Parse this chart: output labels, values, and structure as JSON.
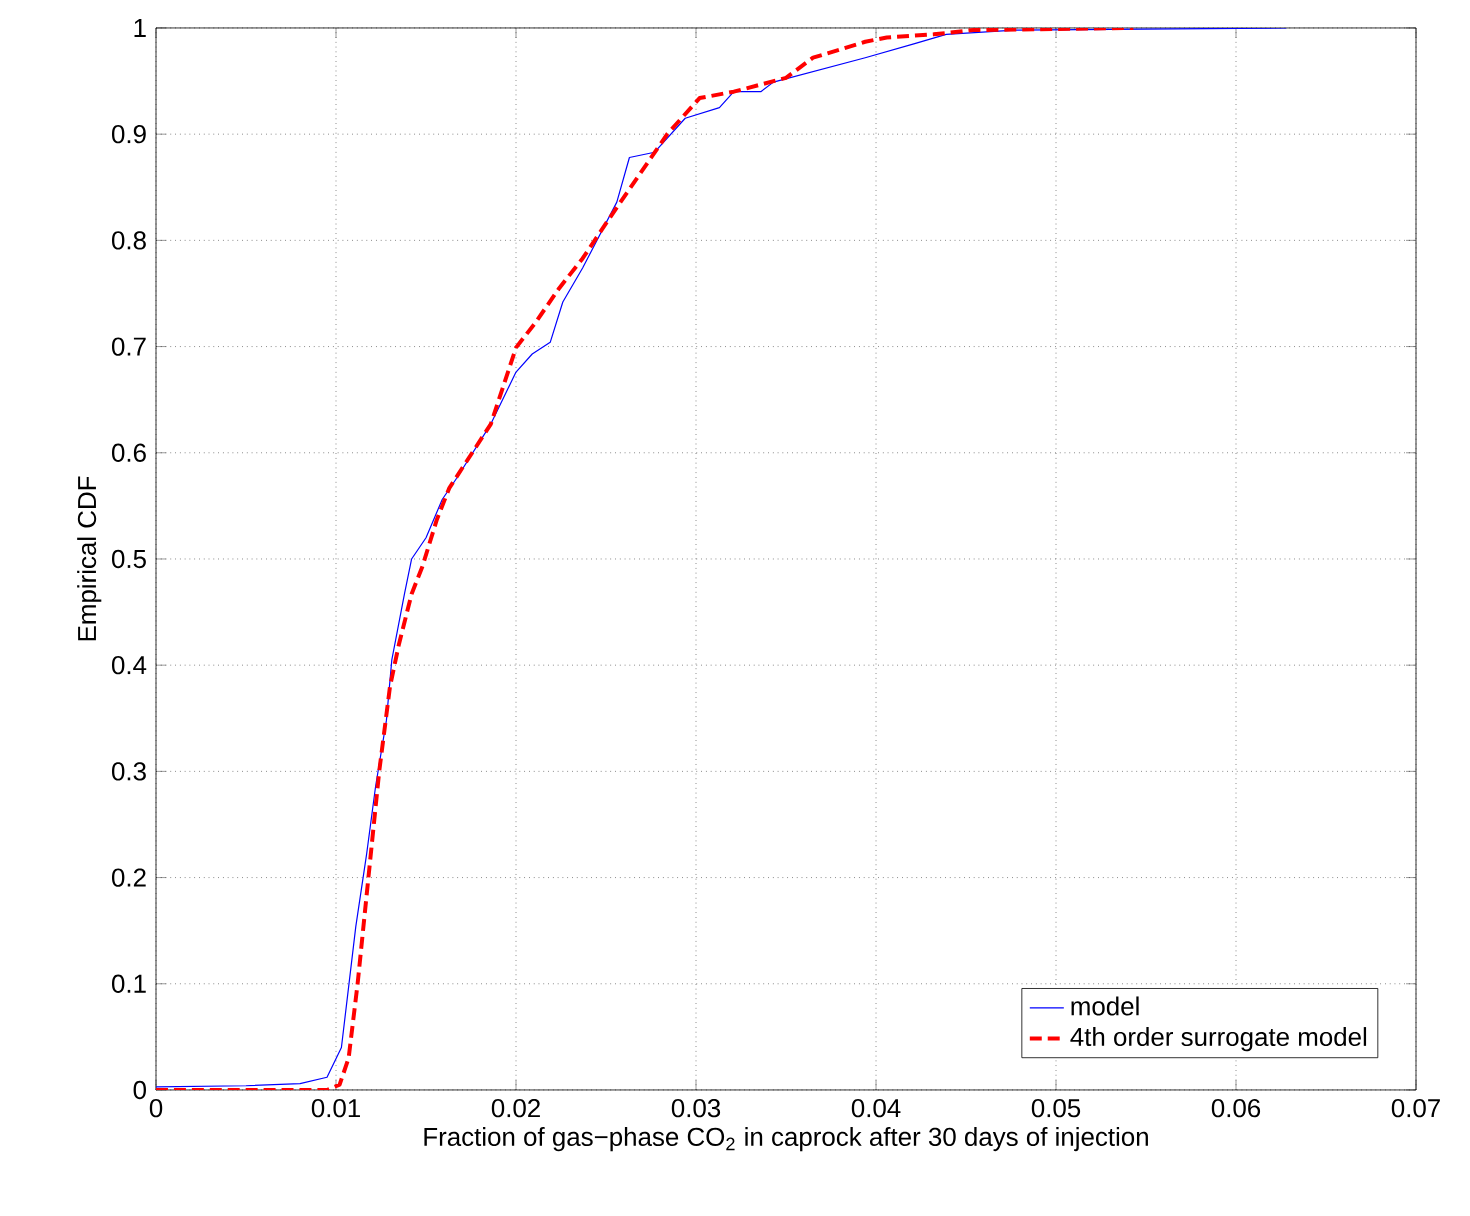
{
  "chart_data": {
    "type": "line",
    "xlabel": "Fraction of gas−phase CO$_{2}$ in caprock after 30 days of injection",
    "ylabel": "Empirical CDF",
    "xlim": [
      0,
      0.07
    ],
    "ylim": [
      0,
      1
    ],
    "xticks": [
      0,
      0.01,
      0.02,
      0.03,
      0.04,
      0.05,
      0.06,
      0.07
    ],
    "yticks": [
      0,
      0.1,
      0.2,
      0.3,
      0.4,
      0.5,
      0.6,
      0.7,
      0.8,
      0.9,
      1
    ],
    "grid": true,
    "legend": "bottom right",
    "series": [
      {
        "name": "model",
        "color": "#0000ff",
        "line_style": "solid",
        "x": [
          0,
          0.005,
          0.008,
          0.0095,
          0.0103,
          0.0111,
          0.0117,
          0.0122,
          0.0128,
          0.0131,
          0.0138,
          0.0142,
          0.015,
          0.0159,
          0.0167,
          0.0186,
          0.02,
          0.0209,
          0.0219,
          0.0226,
          0.0237,
          0.0256,
          0.0263,
          0.0277,
          0.0294,
          0.0313,
          0.0321,
          0.0336,
          0.0343,
          0.0394,
          0.0421,
          0.0439,
          0.0477,
          0.0628
        ],
        "values": [
          0.003,
          0.004,
          0.006,
          0.012,
          0.04,
          0.154,
          0.222,
          0.286,
          0.348,
          0.405,
          0.467,
          0.5,
          0.52,
          0.556,
          0.576,
          0.627,
          0.676,
          0.693,
          0.704,
          0.742,
          0.774,
          0.836,
          0.878,
          0.883,
          0.915,
          0.925,
          0.94,
          0.94,
          0.949,
          0.972,
          0.985,
          0.994,
          0.998,
          1
        ]
      },
      {
        "name": "4th order surrogate model",
        "color": "#ff0000",
        "line_style": "dashed",
        "x": [
          0,
          0.0095,
          0.0102,
          0.0107,
          0.0112,
          0.0118,
          0.0124,
          0.013,
          0.0135,
          0.0142,
          0.0148,
          0.0156,
          0.0163,
          0.0186,
          0.02,
          0.0211,
          0.0224,
          0.0237,
          0.0252,
          0.0269,
          0.0284,
          0.0302,
          0.0321,
          0.035,
          0.0365,
          0.0394,
          0.0406,
          0.0432,
          0.0454,
          0.0543
        ],
        "values": [
          0,
          0,
          0.005,
          0.03,
          0.1,
          0.2,
          0.3,
          0.38,
          0.42,
          0.467,
          0.493,
          0.537,
          0.567,
          0.627,
          0.699,
          0.723,
          0.755,
          0.783,
          0.821,
          0.863,
          0.9,
          0.934,
          0.94,
          0.953,
          0.972,
          0.987,
          0.991,
          0.994,
          0.998,
          1
        ]
      }
    ]
  }
}
